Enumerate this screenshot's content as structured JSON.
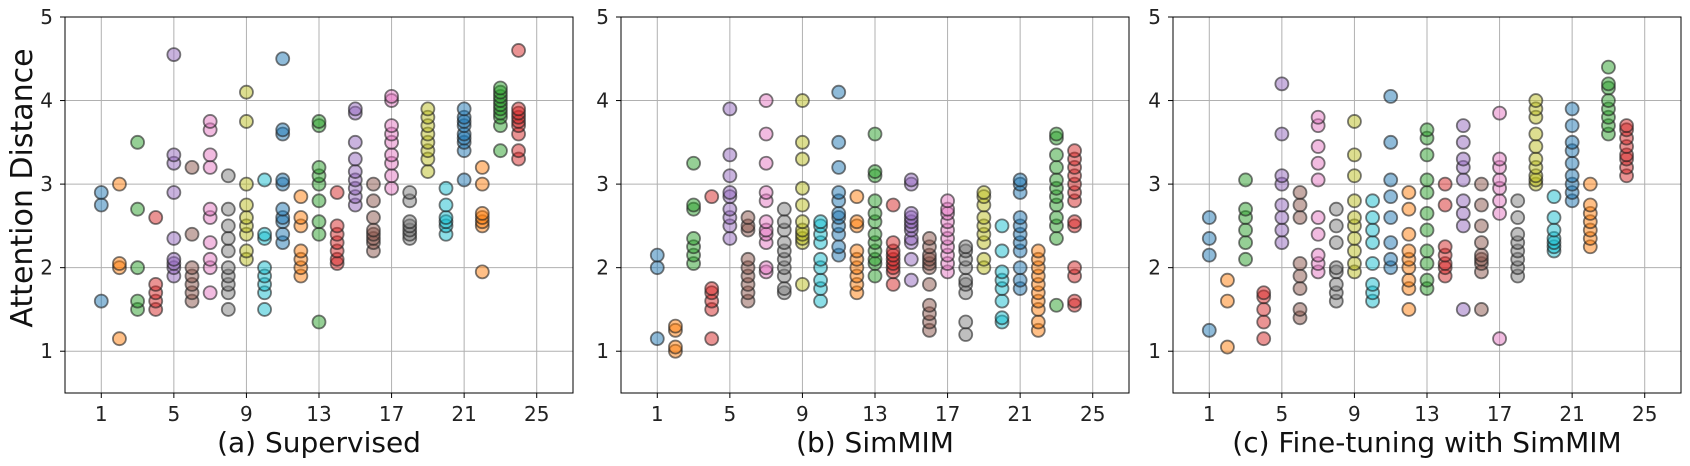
{
  "figure": {
    "ylabel": "Attention Distance"
  },
  "chart_data": [
    {
      "type": "scatter",
      "title": "(a) Supervised",
      "xticks": [
        1,
        5,
        9,
        13,
        17,
        21,
        25
      ],
      "yticks": [
        1,
        2,
        3,
        4,
        5
      ],
      "xlim": [
        -1,
        27
      ],
      "ylim": [
        0.5,
        5
      ],
      "grid": true,
      "series": [
        {
          "x": 1,
          "values": [
            1.6,
            2.75,
            2.9
          ]
        },
        {
          "x": 2,
          "values": [
            1.15,
            2.0,
            2.05,
            3.0
          ]
        },
        {
          "x": 3,
          "values": [
            1.5,
            1.6,
            2.0,
            2.7,
            3.5
          ]
        },
        {
          "x": 4,
          "values": [
            1.5,
            1.6,
            1.7,
            1.8,
            2.6
          ]
        },
        {
          "x": 5,
          "values": [
            1.9,
            2.0,
            2.05,
            2.1,
            2.35,
            2.9,
            3.25,
            3.35,
            4.55
          ]
        },
        {
          "x": 6,
          "values": [
            1.6,
            1.7,
            1.8,
            1.9,
            2.0,
            2.4,
            3.2
          ]
        },
        {
          "x": 7,
          "values": [
            1.7,
            2.0,
            2.1,
            2.3,
            2.6,
            2.7,
            3.2,
            3.35,
            3.65,
            3.75
          ]
        },
        {
          "x": 8,
          "values": [
            1.5,
            1.7,
            1.8,
            1.9,
            2.0,
            2.2,
            2.35,
            2.5,
            2.7,
            3.1
          ]
        },
        {
          "x": 9,
          "values": [
            2.1,
            2.2,
            2.4,
            2.5,
            2.6,
            2.75,
            3.0,
            3.75,
            4.1
          ]
        },
        {
          "x": 10,
          "values": [
            1.5,
            1.7,
            1.8,
            1.9,
            2.0,
            2.35,
            2.4,
            3.05
          ]
        },
        {
          "x": 11,
          "values": [
            2.3,
            2.4,
            2.55,
            2.6,
            2.7,
            3.0,
            3.05,
            3.6,
            3.65,
            4.5
          ]
        },
        {
          "x": 12,
          "values": [
            1.9,
            2.0,
            2.1,
            2.2,
            2.5,
            2.6,
            2.85
          ]
        },
        {
          "x": 13,
          "values": [
            1.35,
            2.4,
            2.55,
            2.8,
            3.0,
            3.1,
            3.2,
            3.7,
            3.75
          ]
        },
        {
          "x": 14,
          "values": [
            2.05,
            2.1,
            2.2,
            2.3,
            2.4,
            2.5,
            2.9
          ]
        },
        {
          "x": 15,
          "values": [
            2.75,
            2.85,
            2.95,
            3.05,
            3.15,
            3.3,
            3.5,
            3.85,
            3.9
          ]
        },
        {
          "x": 16,
          "values": [
            2.2,
            2.3,
            2.35,
            2.4,
            2.45,
            2.6,
            2.8,
            3.0
          ]
        },
        {
          "x": 17,
          "values": [
            2.95,
            3.1,
            3.25,
            3.35,
            3.5,
            3.6,
            3.7,
            4.0,
            4.05
          ]
        },
        {
          "x": 18,
          "values": [
            2.35,
            2.4,
            2.45,
            2.5,
            2.55,
            2.8,
            2.9
          ]
        },
        {
          "x": 19,
          "values": [
            3.15,
            3.3,
            3.4,
            3.5,
            3.6,
            3.7,
            3.8,
            3.9
          ]
        },
        {
          "x": 20,
          "values": [
            2.4,
            2.5,
            2.55,
            2.6,
            2.75,
            2.95
          ]
        },
        {
          "x": 21,
          "values": [
            3.05,
            3.4,
            3.5,
            3.55,
            3.6,
            3.7,
            3.75,
            3.8,
            3.9
          ]
        },
        {
          "x": 22,
          "values": [
            1.95,
            2.5,
            2.55,
            2.6,
            2.65,
            3.0,
            3.2
          ]
        },
        {
          "x": 23,
          "values": [
            3.4,
            3.7,
            3.8,
            3.85,
            3.9,
            3.95,
            4.0,
            4.05,
            4.1,
            4.15
          ]
        },
        {
          "x": 24,
          "values": [
            3.3,
            3.4,
            3.6,
            3.7,
            3.75,
            3.8,
            3.85,
            3.9,
            4.6
          ]
        }
      ]
    },
    {
      "type": "scatter",
      "title": "(b) SimMIM",
      "xticks": [
        1,
        5,
        9,
        13,
        17,
        21,
        25
      ],
      "yticks": [
        1,
        2,
        3,
        4,
        5
      ],
      "xlim": [
        -1,
        27
      ],
      "ylim": [
        0.5,
        5
      ],
      "grid": true,
      "series": [
        {
          "x": 1,
          "values": [
            1.15,
            2.0,
            2.15
          ]
        },
        {
          "x": 2,
          "values": [
            1.0,
            1.05,
            1.25,
            1.3
          ]
        },
        {
          "x": 3,
          "values": [
            2.05,
            2.15,
            2.25,
            2.35,
            2.7,
            2.75,
            3.25
          ]
        },
        {
          "x": 4,
          "values": [
            1.15,
            1.5,
            1.6,
            1.7,
            1.75,
            2.85
          ]
        },
        {
          "x": 5,
          "values": [
            2.35,
            2.5,
            2.6,
            2.7,
            2.85,
            2.9,
            3.1,
            3.35,
            3.9
          ]
        },
        {
          "x": 6,
          "values": [
            1.6,
            1.7,
            1.8,
            1.9,
            2.0,
            2.1,
            2.45,
            2.5,
            2.6
          ]
        },
        {
          "x": 7,
          "values": [
            1.95,
            2.0,
            2.3,
            2.4,
            2.45,
            2.55,
            2.8,
            2.9,
            3.25,
            3.6,
            4.0
          ]
        },
        {
          "x": 8,
          "values": [
            1.7,
            1.75,
            1.9,
            2.0,
            2.1,
            2.2,
            2.3,
            2.45,
            2.55,
            2.7
          ]
        },
        {
          "x": 9,
          "values": [
            1.8,
            2.3,
            2.35,
            2.4,
            2.45,
            2.55,
            2.75,
            2.95,
            3.3,
            3.5,
            4.0
          ]
        },
        {
          "x": 10,
          "values": [
            1.6,
            1.75,
            1.85,
            2.0,
            2.1,
            2.3,
            2.4,
            2.5,
            2.55
          ]
        },
        {
          "x": 11,
          "values": [
            2.15,
            2.25,
            2.4,
            2.5,
            2.6,
            2.65,
            2.8,
            2.9,
            3.2,
            3.5,
            4.1
          ]
        },
        {
          "x": 12,
          "values": [
            1.7,
            1.8,
            1.9,
            2.0,
            2.1,
            2.2,
            2.5,
            2.55,
            2.85
          ]
        },
        {
          "x": 13,
          "values": [
            1.9,
            2.05,
            2.1,
            2.2,
            2.3,
            2.4,
            2.55,
            2.65,
            2.8,
            3.1,
            3.15,
            3.6
          ]
        },
        {
          "x": 14,
          "values": [
            1.8,
            1.95,
            2.0,
            2.05,
            2.1,
            2.15,
            2.2,
            2.3,
            2.75
          ]
        },
        {
          "x": 15,
          "values": [
            1.85,
            2.1,
            2.3,
            2.35,
            2.45,
            2.5,
            2.55,
            2.6,
            2.65,
            3.0,
            3.05
          ]
        },
        {
          "x": 16,
          "values": [
            1.25,
            1.35,
            1.45,
            1.55,
            1.8,
            2.0,
            2.05,
            2.1,
            2.15,
            2.25,
            2.35
          ]
        },
        {
          "x": 17,
          "values": [
            1.95,
            2.05,
            2.15,
            2.25,
            2.35,
            2.45,
            2.55,
            2.65,
            2.7,
            2.8
          ]
        },
        {
          "x": 18,
          "values": [
            1.2,
            1.35,
            1.7,
            1.8,
            1.85,
            2.0,
            2.1,
            2.2,
            2.25
          ]
        },
        {
          "x": 19,
          "values": [
            2.0,
            2.1,
            2.3,
            2.4,
            2.5,
            2.6,
            2.75,
            2.85,
            2.9
          ]
        },
        {
          "x": 20,
          "values": [
            1.35,
            1.4,
            1.6,
            1.75,
            1.85,
            1.95,
            2.2,
            2.5
          ]
        },
        {
          "x": 21,
          "values": [
            1.75,
            1.85,
            2.0,
            2.2,
            2.3,
            2.4,
            2.5,
            2.6,
            2.9,
            3.0,
            3.05
          ]
        },
        {
          "x": 22,
          "values": [
            1.25,
            1.35,
            1.5,
            1.6,
            1.7,
            1.8,
            1.9,
            2.0,
            2.1,
            2.2
          ]
        },
        {
          "x": 23,
          "values": [
            1.55,
            2.35,
            2.5,
            2.6,
            2.75,
            2.85,
            2.95,
            3.05,
            3.2,
            3.35,
            3.55,
            3.6
          ]
        },
        {
          "x": 24,
          "values": [
            1.55,
            1.6,
            1.9,
            2.0,
            2.5,
            2.55,
            2.8,
            2.9,
            3.0,
            3.1,
            3.2,
            3.3,
            3.4
          ]
        }
      ]
    },
    {
      "type": "scatter",
      "title": "(c) Fine-tuning with SimMIM",
      "xticks": [
        1,
        5,
        9,
        13,
        17,
        21,
        25
      ],
      "yticks": [
        1,
        2,
        3,
        4,
        5
      ],
      "xlim": [
        -1,
        27
      ],
      "ylim": [
        0.5,
        5
      ],
      "grid": true,
      "series": [
        {
          "x": 1,
          "values": [
            1.25,
            2.15,
            2.35,
            2.6
          ]
        },
        {
          "x": 2,
          "values": [
            1.05,
            1.6,
            1.85
          ]
        },
        {
          "x": 3,
          "values": [
            2.1,
            2.3,
            2.45,
            2.6,
            2.7,
            3.05
          ]
        },
        {
          "x": 4,
          "values": [
            1.15,
            1.35,
            1.5,
            1.65,
            1.7
          ]
        },
        {
          "x": 5,
          "values": [
            2.3,
            2.45,
            2.6,
            2.75,
            3.0,
            3.1,
            3.6,
            4.2
          ]
        },
        {
          "x": 6,
          "values": [
            1.4,
            1.5,
            1.75,
            1.9,
            2.05,
            2.6,
            2.75,
            2.9
          ]
        },
        {
          "x": 7,
          "values": [
            1.95,
            2.05,
            2.15,
            2.4,
            2.6,
            3.05,
            3.25,
            3.45,
            3.7,
            3.8
          ]
        },
        {
          "x": 8,
          "values": [
            1.6,
            1.7,
            1.8,
            1.95,
            2.0,
            2.3,
            2.5,
            2.7
          ]
        },
        {
          "x": 9,
          "values": [
            1.95,
            2.05,
            2.2,
            2.35,
            2.5,
            2.6,
            2.8,
            3.1,
            3.35,
            3.75
          ]
        },
        {
          "x": 10,
          "values": [
            1.6,
            1.7,
            1.8,
            2.05,
            2.3,
            2.45,
            2.6,
            2.8
          ]
        },
        {
          "x": 11,
          "values": [
            2.0,
            2.1,
            2.3,
            2.6,
            2.85,
            3.05,
            3.5,
            4.05
          ]
        },
        {
          "x": 12,
          "values": [
            1.5,
            1.75,
            1.85,
            2.0,
            2.1,
            2.2,
            2.4,
            2.7,
            2.9
          ]
        },
        {
          "x": 13,
          "values": [
            1.75,
            1.85,
            2.05,
            2.2,
            2.45,
            2.65,
            2.9,
            3.05,
            3.35,
            3.55,
            3.65
          ]
        },
        {
          "x": 14,
          "values": [
            1.9,
            2.0,
            2.05,
            2.15,
            2.25,
            2.75,
            3.0
          ]
        },
        {
          "x": 15,
          "values": [
            1.5,
            2.5,
            2.65,
            2.8,
            3.05,
            3.2,
            3.3,
            3.5,
            3.7
          ]
        },
        {
          "x": 16,
          "values": [
            1.5,
            1.95,
            2.05,
            2.1,
            2.15,
            2.3,
            2.5,
            2.75,
            3.0
          ]
        },
        {
          "x": 17,
          "values": [
            1.15,
            2.65,
            2.8,
            2.95,
            3.05,
            3.2,
            3.3,
            3.85
          ]
        },
        {
          "x": 18,
          "values": [
            1.9,
            2.0,
            2.1,
            2.2,
            2.3,
            2.4,
            2.6,
            2.8
          ]
        },
        {
          "x": 19,
          "values": [
            3.0,
            3.05,
            3.1,
            3.2,
            3.3,
            3.45,
            3.6,
            3.8,
            3.9,
            4.0
          ]
        },
        {
          "x": 20,
          "values": [
            2.2,
            2.25,
            2.3,
            2.35,
            2.45,
            2.6,
            2.85
          ]
        },
        {
          "x": 21,
          "values": [
            2.8,
            2.9,
            3.0,
            3.1,
            3.25,
            3.4,
            3.5,
            3.7,
            3.9
          ]
        },
        {
          "x": 22,
          "values": [
            2.25,
            2.35,
            2.45,
            2.55,
            2.65,
            2.75,
            3.0
          ]
        },
        {
          "x": 23,
          "values": [
            3.6,
            3.7,
            3.8,
            3.9,
            4.0,
            4.15,
            4.2,
            4.4
          ]
        },
        {
          "x": 24,
          "values": [
            3.1,
            3.2,
            3.3,
            3.35,
            3.45,
            3.55,
            3.65,
            3.7
          ]
        }
      ]
    }
  ],
  "colors": [
    "#1f77b4",
    "#ff7f0e",
    "#2ca02c",
    "#d62728",
    "#9467bd",
    "#8c564b",
    "#e377c2",
    "#7f7f7f",
    "#bcbd22",
    "#17becf"
  ]
}
